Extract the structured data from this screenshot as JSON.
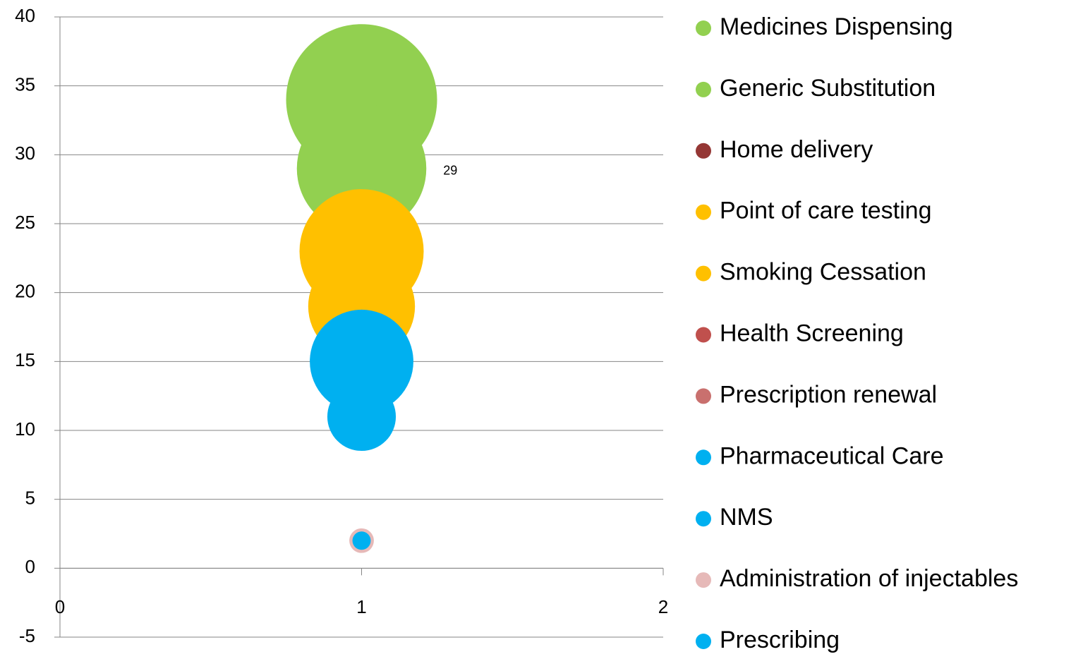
{
  "chart_data": {
    "type": "bubble",
    "xlim": [
      0,
      2
    ],
    "xticks": [
      0,
      1,
      2
    ],
    "ylim": [
      -5,
      40
    ],
    "yticks": [
      -5,
      0,
      5,
      10,
      15,
      20,
      25,
      30,
      35,
      40
    ],
    "grid": true,
    "legend": "right",
    "series": [
      {
        "name": "Medicines Dispensing",
        "color": "#92d050",
        "x": [
          1
        ],
        "y": [
          34
        ],
        "size": [
          34
        ]
      },
      {
        "name": "Generic Substitution",
        "color": "#92d050",
        "x": [
          1
        ],
        "y": [
          29
        ],
        "size": [
          25
        ],
        "show_labels": true
      },
      {
        "name": "Home delivery",
        "color": "#953735",
        "x": [
          1
        ],
        "y": [
          25
        ],
        "size": [
          1
        ]
      },
      {
        "name": "Point of care testing",
        "color": "#ffc000",
        "x": [
          1
        ],
        "y": [
          23
        ],
        "size": [
          23
        ]
      },
      {
        "name": "Smoking Cessation",
        "color": "#ffc000",
        "x": [
          1
        ],
        "y": [
          19
        ],
        "size": [
          17
        ]
      },
      {
        "name": "Health Screening",
        "color": "#c0504d",
        "x": [
          1
        ],
        "y": [
          16
        ],
        "size": [
          1
        ]
      },
      {
        "name": "Prescription renewal",
        "color": "#c9706e",
        "x": [
          1
        ],
        "y": [
          13
        ],
        "size": [
          1
        ]
      },
      {
        "name": "Pharmaceutical Care",
        "color": "#00b0f0",
        "x": [
          1
        ],
        "y": [
          15
        ],
        "size": [
          16
        ]
      },
      {
        "name": "NMS",
        "color": "#00b0f0",
        "x": [
          1
        ],
        "y": [
          11
        ],
        "size": [
          7
        ]
      },
      {
        "name": "Administration of injectables",
        "color": "#e6b9b8",
        "x": [
          1
        ],
        "y": [
          2
        ],
        "size": [
          0.9
        ]
      },
      {
        "name": "Prescribing",
        "color": "#00b0f0",
        "x": [
          1
        ],
        "y": [
          2
        ],
        "size": [
          0.5
        ]
      }
    ]
  }
}
